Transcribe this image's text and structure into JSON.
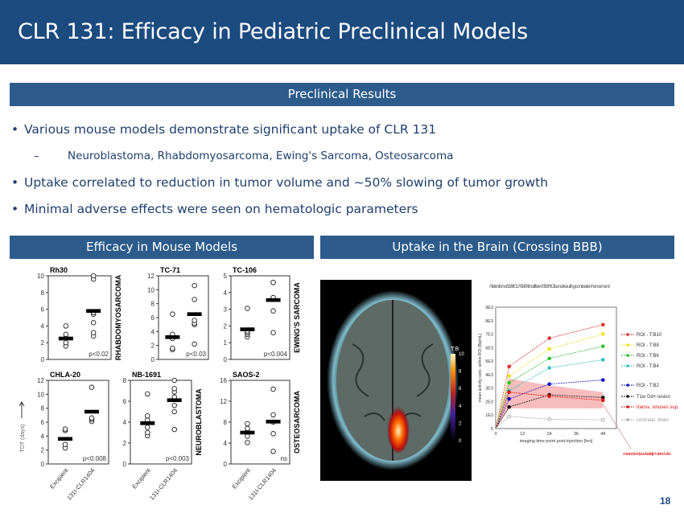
{
  "header": {
    "title": "CLR 131: Efficacy in Pediatric Preclinical Models"
  },
  "section": {
    "label": "Preclinical Results"
  },
  "bullets": [
    {
      "level": 1,
      "text": "Various mouse models demonstrate significant uptake of CLR 131"
    },
    {
      "level": 2,
      "text": "Neuroblastoma, Rhabdomyosarcoma, Ewing's Sarcoma, Osteosarcoma"
    },
    {
      "level": 1,
      "text": "Uptake correlated to reduction in tumor volume and ~50% slowing of tumor growth"
    },
    {
      "level": 1,
      "text": "Minimal adverse effects were seen on hematologic parameters"
    }
  ],
  "left_panel": {
    "label": "Efficacy in Mouse Models"
  },
  "right_panel": {
    "label": "Uptake in the Brain (Crossing BBB)"
  },
  "page_number": "18",
  "chart_data": [
    {
      "type": "scatter",
      "title": "Rh30",
      "side_label": "RHABDOMYOSARCOMA",
      "ylim": [
        0,
        10
      ],
      "yticks": [
        0,
        2,
        4,
        6,
        8,
        10
      ],
      "categories": [
        "Excipient",
        "131I-CLR1404"
      ],
      "series": [
        {
          "values": [
            1.6,
            2.0,
            2.6,
            3.0,
            4.0
          ],
          "mean": 2.5
        },
        {
          "values": [
            2.8,
            3.2,
            4.4,
            5.4,
            5.6,
            9.6,
            10.0
          ],
          "mean": 5.8
        }
      ],
      "annotation": "p<0.02"
    },
    {
      "type": "scatter",
      "title": "TC-71",
      "ylim": [
        0,
        12
      ],
      "yticks": [
        0,
        2,
        4,
        6,
        8,
        10,
        12
      ],
      "categories": [
        "Excipient",
        "131I-CLR1404"
      ],
      "series": [
        {
          "values": [
            1.4,
            1.6,
            3.0,
            3.4,
            3.6,
            6.5
          ],
          "mean": 3.2
        },
        {
          "values": [
            2.2,
            5.0,
            5.2,
            5.6,
            8.6,
            10.6
          ],
          "mean": 6.5
        }
      ],
      "annotation": "p<0.03"
    },
    {
      "type": "scatter",
      "title": "TC-106",
      "side_label": "EWING'S SARCOMA",
      "ylim": [
        0,
        5
      ],
      "yticks": [
        0,
        1,
        2,
        3,
        4,
        5
      ],
      "categories": [
        "Excipient",
        "131I-CLR1404"
      ],
      "series": [
        {
          "values": [
            1.35,
            1.5,
            1.6,
            1.7,
            3.05
          ],
          "mean": 1.8
        },
        {
          "values": [
            1.6,
            2.9,
            3.7,
            4.6,
            4.6
          ],
          "mean": 3.55
        }
      ],
      "annotation": "p<0.004"
    },
    {
      "type": "scatter",
      "title": "CHLA-20",
      "ylabel": "TDT (days)",
      "ylim": [
        0,
        12
      ],
      "yticks": [
        0,
        2,
        4,
        6,
        8,
        10,
        12
      ],
      "categories": [
        "Excipient",
        "131I-CLR1404"
      ],
      "series": [
        {
          "values": [
            2.3,
            2.8,
            4.8,
            5.0
          ],
          "mean": 3.6
        },
        {
          "values": [
            6.1,
            6.4,
            6.6,
            11.0
          ],
          "mean": 7.5
        }
      ],
      "annotation": "p<0.008"
    },
    {
      "type": "scatter",
      "title": "NB-1691",
      "side_label": "NEUROBLASTOMA",
      "ylim": [
        0,
        8
      ],
      "yticks": [
        0,
        2,
        4,
        6,
        8
      ],
      "categories": [
        "Excipient",
        "131I-CLR1404"
      ],
      "series": [
        {
          "values": [
            2.7,
            3.0,
            3.5,
            4.2,
            4.6,
            6.7
          ],
          "mean": 3.9
        },
        {
          "values": [
            3.3,
            5.0,
            5.6,
            6.4,
            6.9,
            7.2,
            8.0
          ],
          "mean": 6.1
        }
      ],
      "annotation": "p<0.003"
    },
    {
      "type": "scatter",
      "title": "SAOS-2",
      "side_label": "OSTEOSARCOMA",
      "ylim": [
        0,
        16
      ],
      "yticks": [
        0,
        4,
        8,
        12,
        16
      ],
      "categories": [
        "Excipient",
        "131I-CLR1404"
      ],
      "series": [
        {
          "values": [
            4.1,
            5.3,
            6.2,
            6.8,
            7.7
          ],
          "mean": 6.0
        },
        {
          "values": [
            2.4,
            5.8,
            8.0,
            9.4,
            14.3
          ],
          "mean": 8.1
        }
      ],
      "annotation": "ns"
    },
    {
      "type": "line",
      "title": "Retention of 124I-CLR1404 in different T:B ROIs and resulting contrast enhancement",
      "xlabel": "imaging time point post-injection [hrs]",
      "ylabel": "mean activity conc. within ROI [Bq/mL]",
      "xlim": [
        0,
        54
      ],
      "ylim": [
        0,
        9000
      ],
      "xticks": [
        0,
        12,
        24,
        36,
        48
      ],
      "yticks": [
        "0",
        "1E3",
        "2E3",
        "3E3",
        "4E3",
        "5E3",
        "6E3",
        "7E3",
        "8E3",
        "9E3"
      ],
      "x": [
        0,
        6,
        24,
        48
      ],
      "series": [
        {
          "name": "ROI - T:B10",
          "color": "#e03030",
          "marker": "triangle-left",
          "values": [
            0,
            4600,
            6700,
            7700
          ]
        },
        {
          "name": "ROI - T:B8",
          "color": "#e8e020",
          "marker": "triangle-down",
          "values": [
            0,
            3900,
            5900,
            7000
          ]
        },
        {
          "name": "ROI - T:B6",
          "color": "#30c030",
          "marker": "triangle-right",
          "values": [
            0,
            3400,
            5200,
            6100
          ]
        },
        {
          "name": "ROI - T:B4",
          "color": "#30c0c0",
          "marker": "triangle-up",
          "values": [
            0,
            2800,
            4500,
            5100
          ]
        },
        {
          "name": "ROI - T:B2",
          "color": "#1010c0",
          "marker": "diamond",
          "values": [
            0,
            2200,
            3300,
            3600
          ]
        },
        {
          "name": "T1w Gd+ lesion",
          "color": "#111111",
          "marker": "square",
          "values": [
            0,
            1600,
            2500,
            2300
          ]
        },
        {
          "name": "transv. sinuses sup. sag. sinus",
          "color": "#e01010",
          "marker": "circle",
          "values": [
            0,
            2700,
            2400,
            2100
          ]
        },
        {
          "name": "contralat. brain",
          "color": "#aaaaaa",
          "marker": "circle-open",
          "values": [
            0,
            900,
            700,
            650
          ]
        }
      ],
      "band": {
        "label": "mean blood pool activity ± stand. dev.",
        "upper": [
          0,
          3700,
          3200,
          2700
        ],
        "lower": [
          0,
          1500,
          1500,
          1500
        ],
        "color": "#f4a0a0"
      },
      "colorbar": {
        "label": "T:B",
        "ticks": [
          "0",
          "2",
          "4",
          "6",
          "8",
          "10"
        ]
      }
    }
  ]
}
